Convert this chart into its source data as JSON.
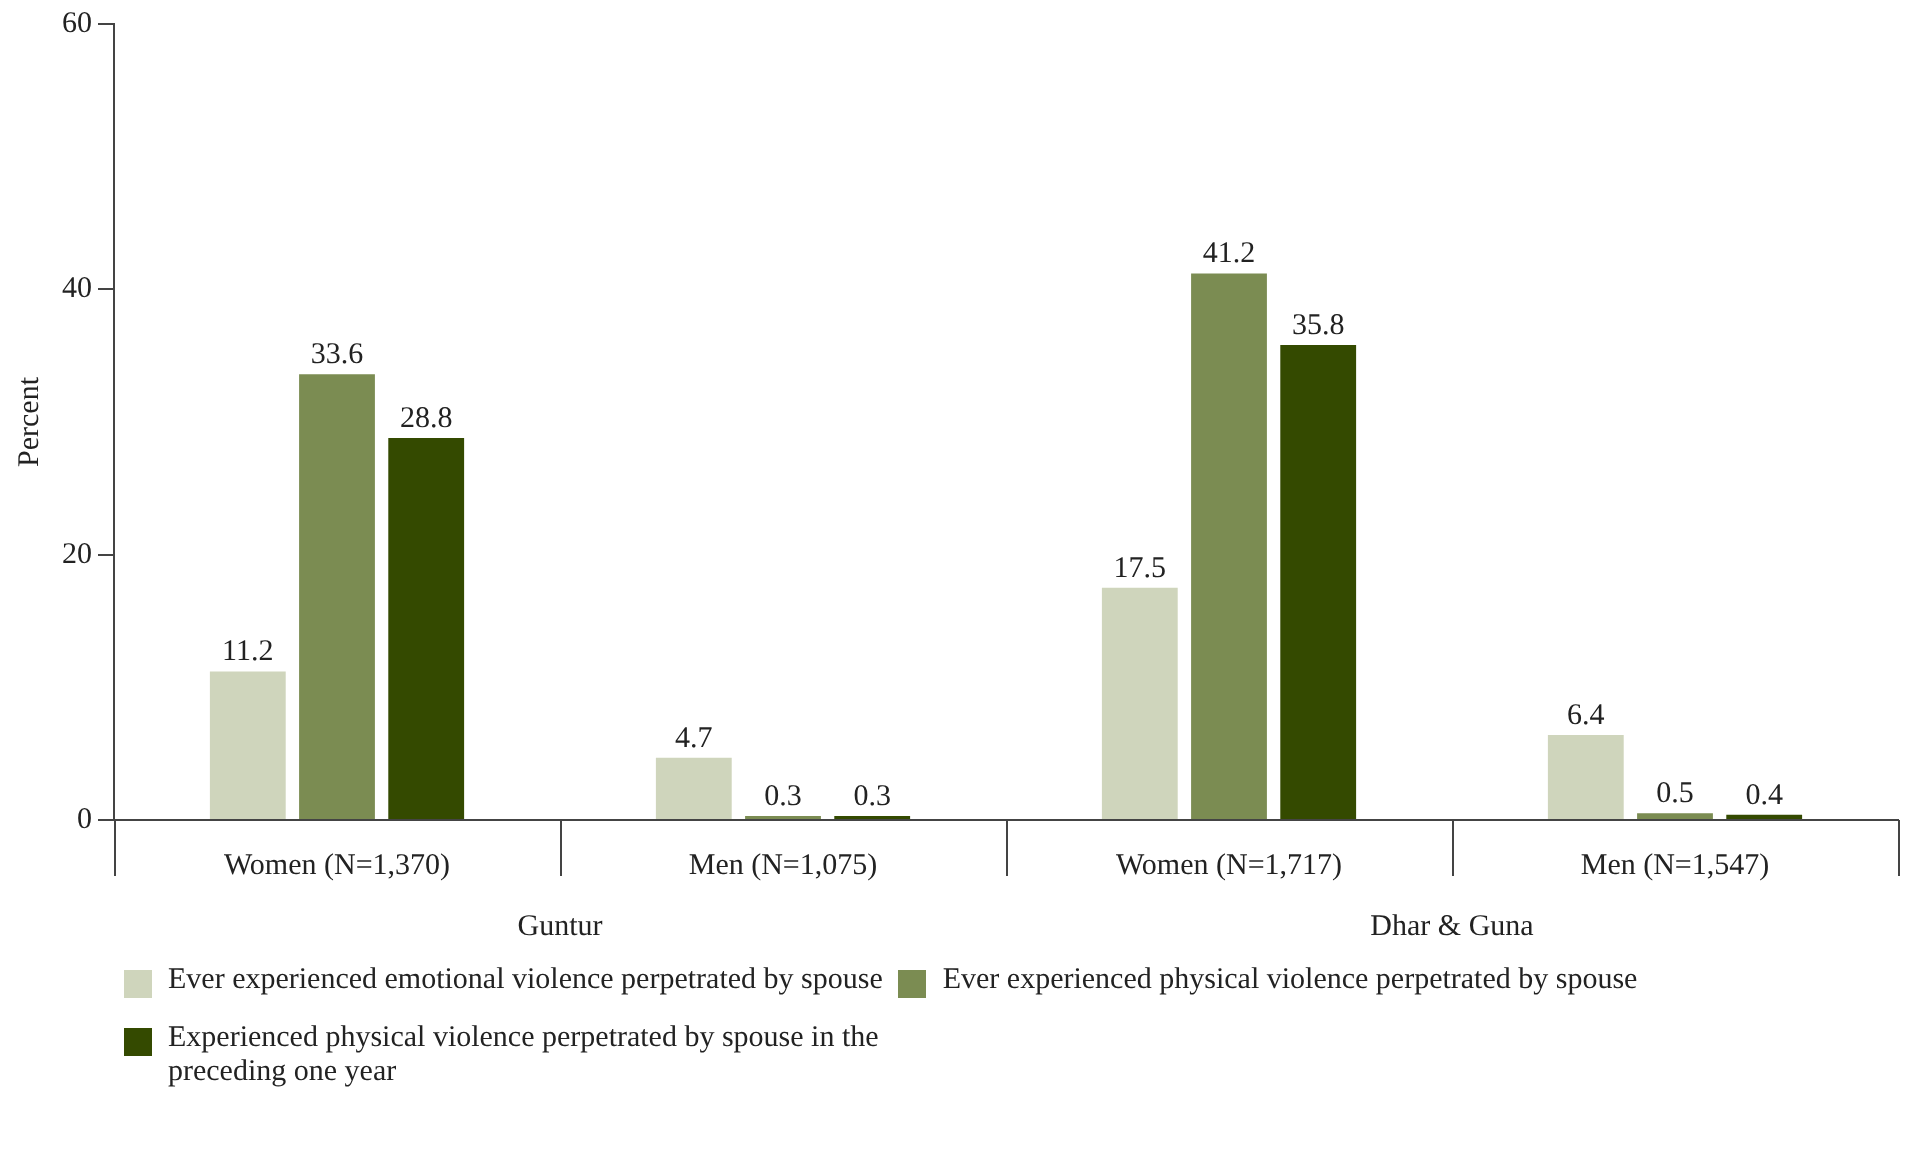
{
  "chart_data": {
    "type": "bar",
    "ylabel": "Percent",
    "categories": [
      "Women (N=1,370)",
      "Men (N=1,075)",
      "Women (N=1,717)",
      "Men (N=1,547)"
    ],
    "series": [
      {
        "name": "Ever experienced emotional violence perpetrated by spouse",
        "color": "#cfd5bc",
        "values": [
          11.2,
          4.7,
          17.5,
          6.4
        ]
      },
      {
        "name": "Ever experienced physical violence perpetrated by spouse",
        "color": "#7b8c52",
        "values": [
          33.6,
          0.3,
          41.2,
          0.5
        ]
      },
      {
        "name": "Experienced physical violence perpetrated by spouse in the preceding one year",
        "color": "#344a00",
        "values": [
          28.8,
          0.3,
          35.8,
          0.4
        ]
      }
    ],
    "annotations": [
      "Guntur",
      "Dhar & Guna"
    ],
    "ylim": [
      0,
      60
    ],
    "yticks": [
      0,
      20,
      40,
      60
    ],
    "grid": false,
    "data_labels": true,
    "legend": "bottom"
  }
}
